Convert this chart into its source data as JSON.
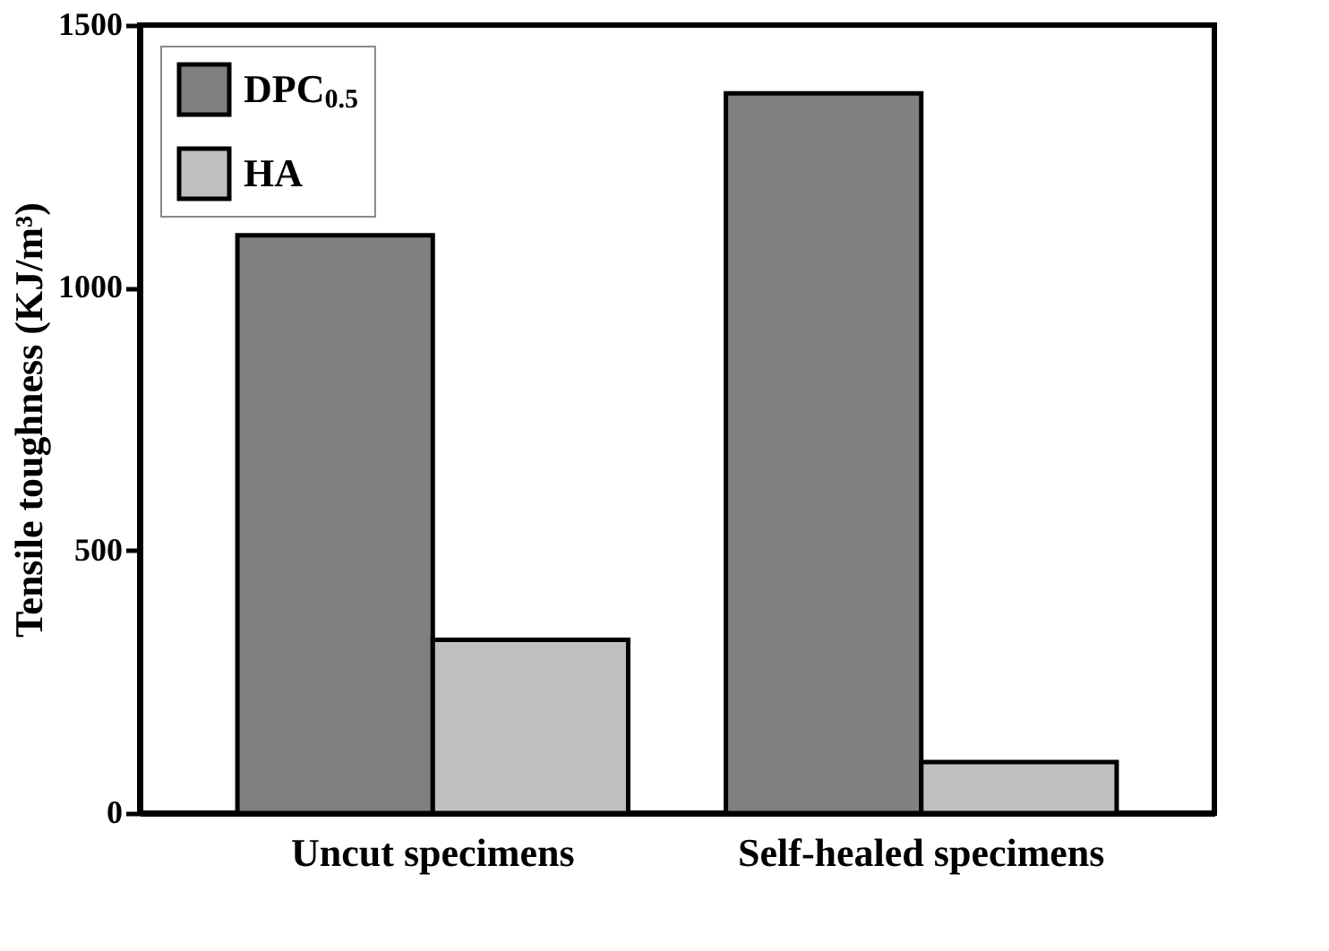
{
  "chart_data": {
    "type": "bar",
    "ylabel": "Tensile toughness (KJ/m³)",
    "categories": [
      "Uncut specimens",
      "Self-healed specimens"
    ],
    "series": [
      {
        "name": "DPC$_{0.5}$",
        "color": "#808080",
        "values": [
          1100,
          1370
        ]
      },
      {
        "name": "HA",
        "color": "#c0c0c0",
        "values": [
          330,
          97
        ]
      }
    ],
    "ylim": [
      0,
      1500
    ],
    "yticks": [
      0,
      500,
      1000,
      1500
    ],
    "grid": false,
    "legend": "top left"
  }
}
